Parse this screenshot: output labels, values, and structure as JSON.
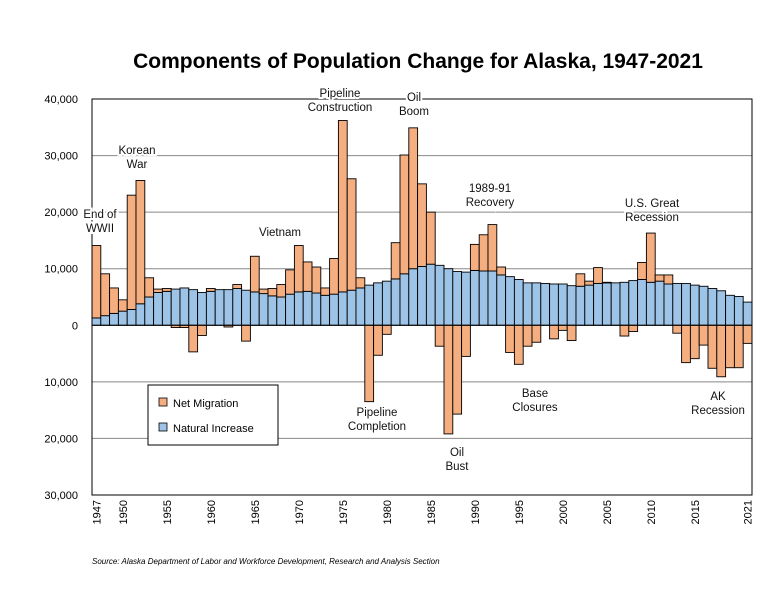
{
  "chart_data": {
    "type": "bar",
    "title": "Components of Population Change for Alaska, 1947-2021",
    "source": "Source: Alaska Department of Labor and Workforce Development, Research and Analysis Section",
    "x_start": 1947,
    "x_end": 2021,
    "x_tick_labels": [
      "1947",
      "1950",
      "1955",
      "1960",
      "1965",
      "1970",
      "1975",
      "1980",
      "1985",
      "1990",
      "1995",
      "2000",
      "2005",
      "2010",
      "2015",
      "2021"
    ],
    "ylim": [
      -30000,
      40000
    ],
    "y_tick_values": [
      40000,
      30000,
      20000,
      10000,
      0,
      -10000,
      -20000,
      -30000
    ],
    "y_tick_labels": [
      "40,000",
      "30,000",
      "20,000",
      "10,000",
      "0",
      "10,000",
      "20,000",
      "30,000"
    ],
    "grid": true,
    "stacked_positive": true,
    "legend_position": "lower-left",
    "series": [
      {
        "name": "Net Migration",
        "color": "#F5AE80",
        "values": [
          12800,
          7400,
          4500,
          2000,
          20200,
          21800,
          3400,
          600,
          500,
          -400,
          -400,
          -4700,
          -1800,
          500,
          0,
          -300,
          700,
          -2800,
          6300,
          800,
          1300,
          2200,
          4300,
          8200,
          5200,
          4600,
          1300,
          6300,
          30300,
          19700,
          1800,
          -13500,
          -5300,
          -1600,
          6400,
          21000,
          24900,
          14600,
          9200,
          -3700,
          -19200,
          -15700,
          -5500,
          4600,
          6400,
          8200,
          1400,
          -4800,
          -6900,
          -3700,
          -3000,
          0,
          -2400,
          -900,
          -2700,
          2200,
          700,
          2800,
          100,
          0,
          -1900,
          -1100,
          3000,
          8700,
          1100,
          1600,
          -1400,
          -6600,
          -5900,
          -3500,
          -7600,
          -9100,
          -7500,
          -7500,
          -3200
        ]
      },
      {
        "name": "Natural Increase",
        "color": "#9DC3E6",
        "values": [
          1300,
          1700,
          2100,
          2500,
          2800,
          3800,
          5000,
          5800,
          6000,
          6400,
          6600,
          6300,
          5800,
          6000,
          6300,
          6300,
          6500,
          6200,
          5900,
          5600,
          5200,
          5000,
          5500,
          5900,
          6000,
          5700,
          5300,
          5500,
          5900,
          6200,
          6600,
          7100,
          7500,
          7800,
          8200,
          9100,
          10000,
          10400,
          10800,
          10600,
          10000,
          9500,
          9400,
          9700,
          9600,
          9600,
          8900,
          8600,
          8100,
          7500,
          7500,
          7400,
          7300,
          7300,
          7000,
          6900,
          7100,
          7400,
          7500,
          7500,
          7600,
          7900,
          8100,
          7600,
          7800,
          7300,
          7400,
          7400,
          7100,
          6900,
          6500,
          6100,
          5300,
          5100,
          4100
        ]
      }
    ],
    "annotations": [
      {
        "lines": [
          "End of",
          "WWII"
        ]
      },
      {
        "lines": [
          "Korean",
          "War"
        ]
      },
      {
        "lines": [
          "Vietnam"
        ]
      },
      {
        "lines": [
          "Pipeline",
          "Construction"
        ]
      },
      {
        "lines": [
          "Oil",
          "Boom"
        ]
      },
      {
        "lines": [
          "1989-91",
          "Recovery"
        ]
      },
      {
        "lines": [
          "U.S. Great",
          "Recession"
        ]
      },
      {
        "lines": [
          "Pipeline",
          "Completion"
        ]
      },
      {
        "lines": [
          "Oil",
          "Bust"
        ]
      },
      {
        "lines": [
          "Base",
          "Closures"
        ]
      },
      {
        "lines": [
          "AK",
          "Recession"
        ]
      }
    ]
  }
}
